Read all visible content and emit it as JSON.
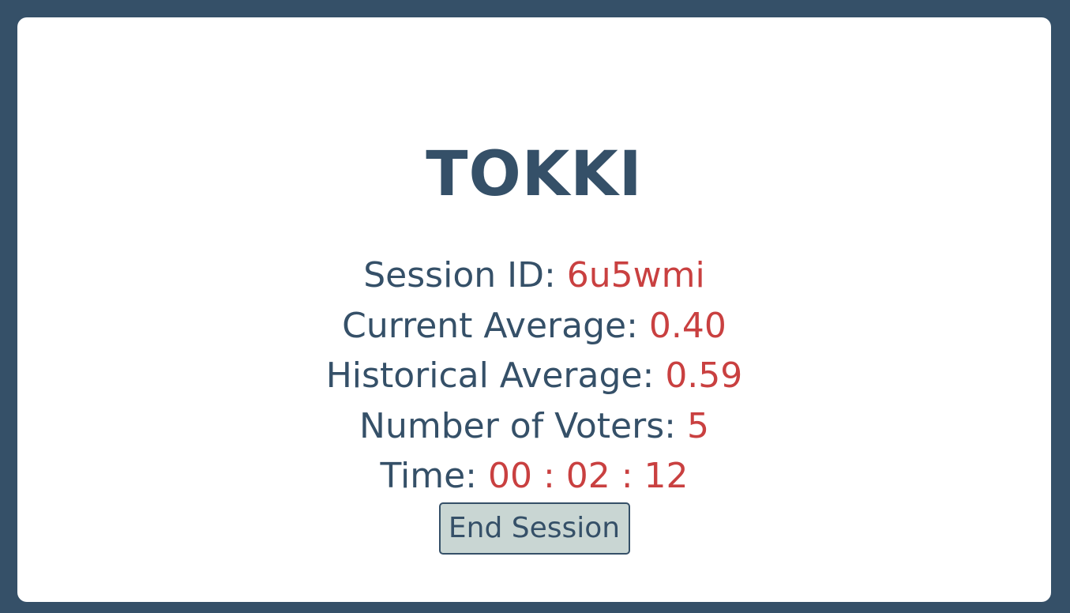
{
  "app": {
    "title": "TOKKI"
  },
  "session": {
    "id_label": "Session ID: ",
    "id_value": "6u5wmi",
    "current_average_label": "Current Average: ",
    "current_average_value": "0.40",
    "historical_average_label": "Historical Average: ",
    "historical_average_value": "0.59",
    "voters_label": "Number of Voters: ",
    "voters_value": "5",
    "time_label": "Time: ",
    "time_value": "00 : 02 : 12"
  },
  "actions": {
    "end_session_label": "End Session"
  },
  "colors": {
    "background": "#355068",
    "card": "#ffffff",
    "text": "#355068",
    "accent": "#c94040",
    "button_bg": "#c9d6d3"
  }
}
